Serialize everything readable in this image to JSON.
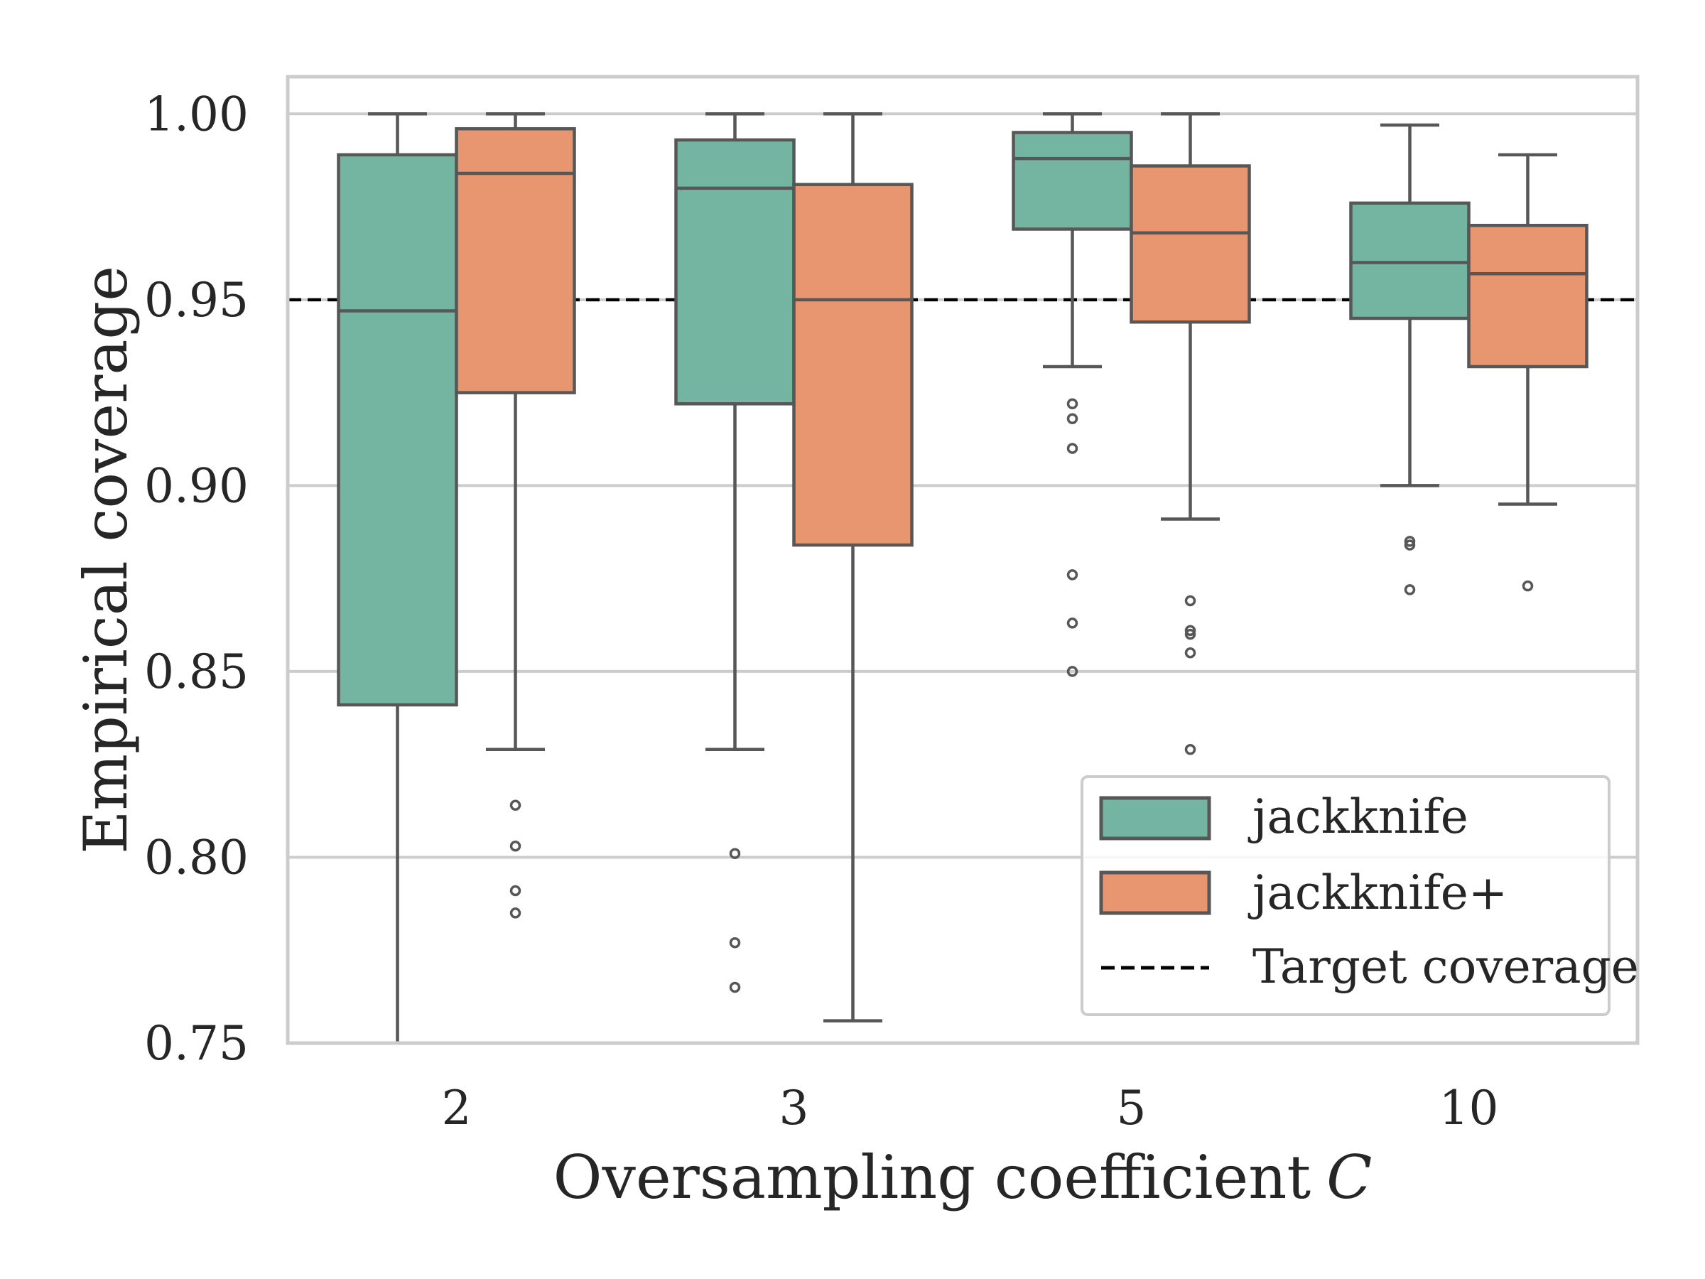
{
  "chart_data": {
    "type": "box",
    "title": "",
    "xlabel": "Oversampling coefficient",
    "xlabel_symbol": "C",
    "ylabel": "Empirical coverage",
    "ylim": [
      0.75,
      1.01
    ],
    "yticks": [
      0.75,
      0.8,
      0.85,
      0.9,
      0.95,
      1.0
    ],
    "ytick_labels": [
      "0.75",
      "0.80",
      "0.85",
      "0.90",
      "0.95",
      "1.00"
    ],
    "categories": [
      "2",
      "3",
      "5",
      "10"
    ],
    "grid": "horizontal",
    "target_coverage": 0.95,
    "legend": {
      "location": "lower-right",
      "entries": [
        {
          "label": "jackknife",
          "kind": "box",
          "series": 0
        },
        {
          "label": "jackknife+",
          "kind": "box",
          "series": 1
        },
        {
          "label": "Target coverage",
          "kind": "dashed-line"
        }
      ]
    },
    "colors": {
      "jackknife": "#73b5a0",
      "jackknife+": "#e8966f",
      "edge": "#575757",
      "target": "#000000",
      "grid": "#cccccc",
      "frame": "#cccccc"
    },
    "series": [
      {
        "name": "jackknife",
        "boxes": [
          {
            "whislo": 0.75,
            "q1": 0.841,
            "med": 0.947,
            "q3": 0.989,
            "whishi": 1.0,
            "fliers": []
          },
          {
            "whislo": 0.829,
            "q1": 0.922,
            "med": 0.98,
            "q3": 0.993,
            "whishi": 1.0,
            "fliers": [
              0.801,
              0.777,
              0.765
            ]
          },
          {
            "whislo": 0.932,
            "q1": 0.969,
            "med": 0.988,
            "q3": 0.995,
            "whishi": 1.0,
            "fliers": [
              0.922,
              0.918,
              0.91,
              0.876,
              0.863,
              0.85
            ]
          },
          {
            "whislo": 0.9,
            "q1": 0.945,
            "med": 0.96,
            "q3": 0.976,
            "whishi": 0.997,
            "fliers": [
              0.885,
              0.884,
              0.872
            ]
          }
        ]
      },
      {
        "name": "jackknife+",
        "boxes": [
          {
            "whislo": 0.829,
            "q1": 0.925,
            "med": 0.984,
            "q3": 0.996,
            "whishi": 1.0,
            "fliers": [
              0.814,
              0.803,
              0.791,
              0.785
            ]
          },
          {
            "whislo": 0.756,
            "q1": 0.884,
            "med": 0.95,
            "q3": 0.981,
            "whishi": 1.0,
            "fliers": []
          },
          {
            "whislo": 0.891,
            "q1": 0.944,
            "med": 0.968,
            "q3": 0.986,
            "whishi": 1.0,
            "fliers": [
              0.869,
              0.861,
              0.86,
              0.855,
              0.829
            ]
          },
          {
            "whislo": 0.895,
            "q1": 0.932,
            "med": 0.957,
            "q3": 0.97,
            "whishi": 0.989,
            "fliers": [
              0.873
            ]
          }
        ]
      }
    ]
  }
}
